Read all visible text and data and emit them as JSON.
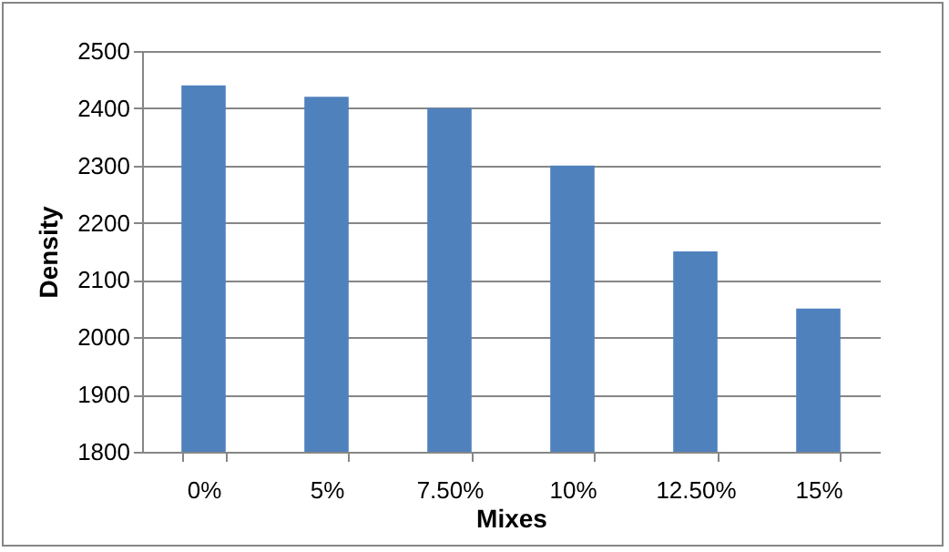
{
  "chart_data": {
    "type": "bar",
    "xlabel": "Mixes",
    "ylabel": "Density",
    "categories": [
      "0%",
      "5%",
      "7.50%",
      "10%",
      "12.50%",
      "15%"
    ],
    "values": [
      2440,
      2420,
      2400,
      2300,
      2150,
      2050
    ],
    "color": "#4f81bd",
    "ylim": [
      1800,
      2500
    ],
    "yticks": [
      1800,
      1900,
      2000,
      2100,
      2200,
      2300,
      2400,
      2500
    ],
    "grid": "y"
  }
}
